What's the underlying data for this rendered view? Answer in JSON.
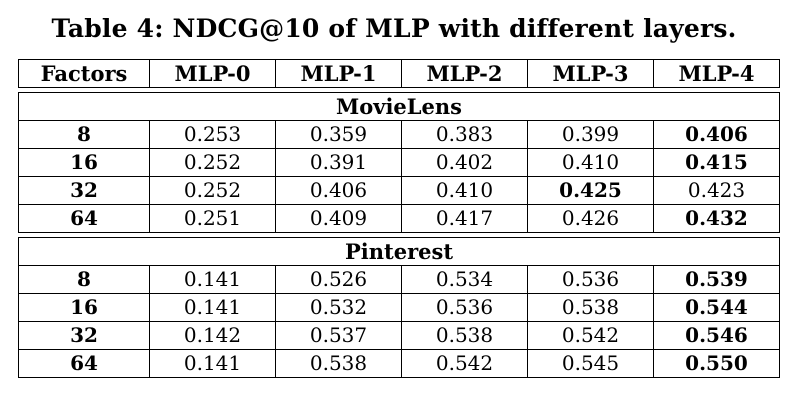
{
  "caption": "Table 4: NDCG@10 of MLP with different layers.",
  "table": {
    "headers": [
      "Factors",
      "MLP-0",
      "MLP-1",
      "MLP-2",
      "MLP-3",
      "MLP-4"
    ],
    "sections": [
      {
        "name": "MovieLens",
        "rows": [
          {
            "factor": "8",
            "values": [
              "0.253",
              "0.359",
              "0.383",
              "0.399",
              "0.406"
            ],
            "bold": [
              false,
              false,
              false,
              false,
              true
            ]
          },
          {
            "factor": "16",
            "values": [
              "0.252",
              "0.391",
              "0.402",
              "0.410",
              "0.415"
            ],
            "bold": [
              false,
              false,
              false,
              false,
              true
            ]
          },
          {
            "factor": "32",
            "values": [
              "0.252",
              "0.406",
              "0.410",
              "0.425",
              "0.423"
            ],
            "bold": [
              false,
              false,
              false,
              true,
              false
            ]
          },
          {
            "factor": "64",
            "values": [
              "0.251",
              "0.409",
              "0.417",
              "0.426",
              "0.432"
            ],
            "bold": [
              false,
              false,
              false,
              false,
              true
            ]
          }
        ]
      },
      {
        "name": "Pinterest",
        "rows": [
          {
            "factor": "8",
            "values": [
              "0.141",
              "0.526",
              "0.534",
              "0.536",
              "0.539"
            ],
            "bold": [
              false,
              false,
              false,
              false,
              true
            ]
          },
          {
            "factor": "16",
            "values": [
              "0.141",
              "0.532",
              "0.536",
              "0.538",
              "0.544"
            ],
            "bold": [
              false,
              false,
              false,
              false,
              true
            ]
          },
          {
            "factor": "32",
            "values": [
              "0.142",
              "0.537",
              "0.538",
              "0.542",
              "0.546"
            ],
            "bold": [
              false,
              false,
              false,
              false,
              true
            ]
          },
          {
            "factor": "64",
            "values": [
              "0.141",
              "0.538",
              "0.542",
              "0.545",
              "0.550"
            ],
            "bold": [
              false,
              false,
              false,
              false,
              true
            ]
          }
        ]
      }
    ]
  }
}
